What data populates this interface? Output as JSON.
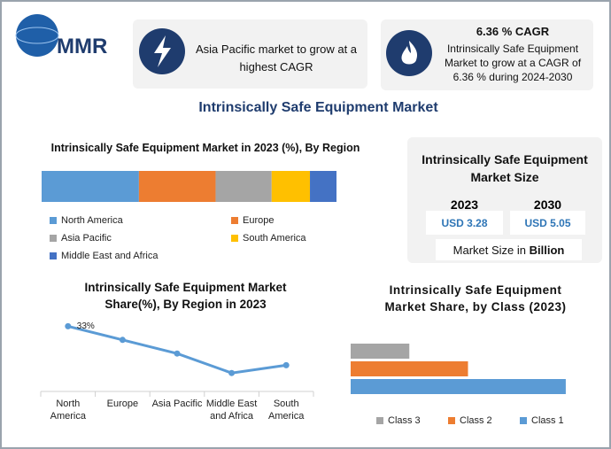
{
  "logo": "MMR",
  "cards": [
    {
      "text": "Asia Pacific market to grow at a highest CAGR"
    },
    {
      "title": "6.36 % CAGR",
      "text": "Intrinsically Safe Equipment Market to grow at a CAGR of 6.36 % during 2024-2030"
    }
  ],
  "title": "Intrinsically Safe Equipment Market",
  "market_size": {
    "title": "Intrinsically Safe Equipment Market Size",
    "years": [
      "2023",
      "2030"
    ],
    "values": [
      "USD 3.28",
      "USD 5.05"
    ],
    "note": "Market Size in",
    "note_unit": "Billion"
  },
  "chart_data": [
    {
      "type": "bar",
      "orientation": "horizontal",
      "stacked": true,
      "title": "Intrinsically Safe Equipment Market in 2023 (%), By Region",
      "xlim": [
        0,
        100
      ],
      "series": [
        {
          "name": "North America",
          "color": "#5b9bd5",
          "values": [
            33
          ]
        },
        {
          "name": "Europe",
          "color": "#ed7d31",
          "values": [
            26
          ]
        },
        {
          "name": "Asia Pacific",
          "color": "#a5a5a5",
          "values": [
            19
          ]
        },
        {
          "name": "South America",
          "color": "#ffc000",
          "values": [
            13
          ]
        },
        {
          "name": "Middle East and Africa",
          "color": "#4472c4",
          "values": [
            9
          ]
        }
      ]
    },
    {
      "type": "line",
      "title": "Intrinsically Safe Equipment Market Share(%), By Region in 2023",
      "categories": [
        "North America",
        "Europe",
        "Asia Pacific",
        "Middle East and Africa",
        "South America"
      ],
      "values": [
        33,
        26,
        19,
        9,
        13
      ],
      "value_labels": [
        "33%",
        null,
        null,
        null,
        null
      ],
      "color": "#5b9bd5",
      "ylim": [
        0,
        40
      ]
    },
    {
      "type": "bar",
      "orientation": "horizontal",
      "title": "Intrinsically Safe Equipment Market Share, by Class (2023)",
      "xlim": [
        0,
        60
      ],
      "series": [
        {
          "name": "Class 3",
          "color": "#a5a5a5",
          "values": [
            15
          ]
        },
        {
          "name": "Class 2",
          "color": "#ed7d31",
          "values": [
            30
          ]
        },
        {
          "name": "Class 1",
          "color": "#5b9bd5",
          "values": [
            55
          ]
        }
      ]
    }
  ]
}
